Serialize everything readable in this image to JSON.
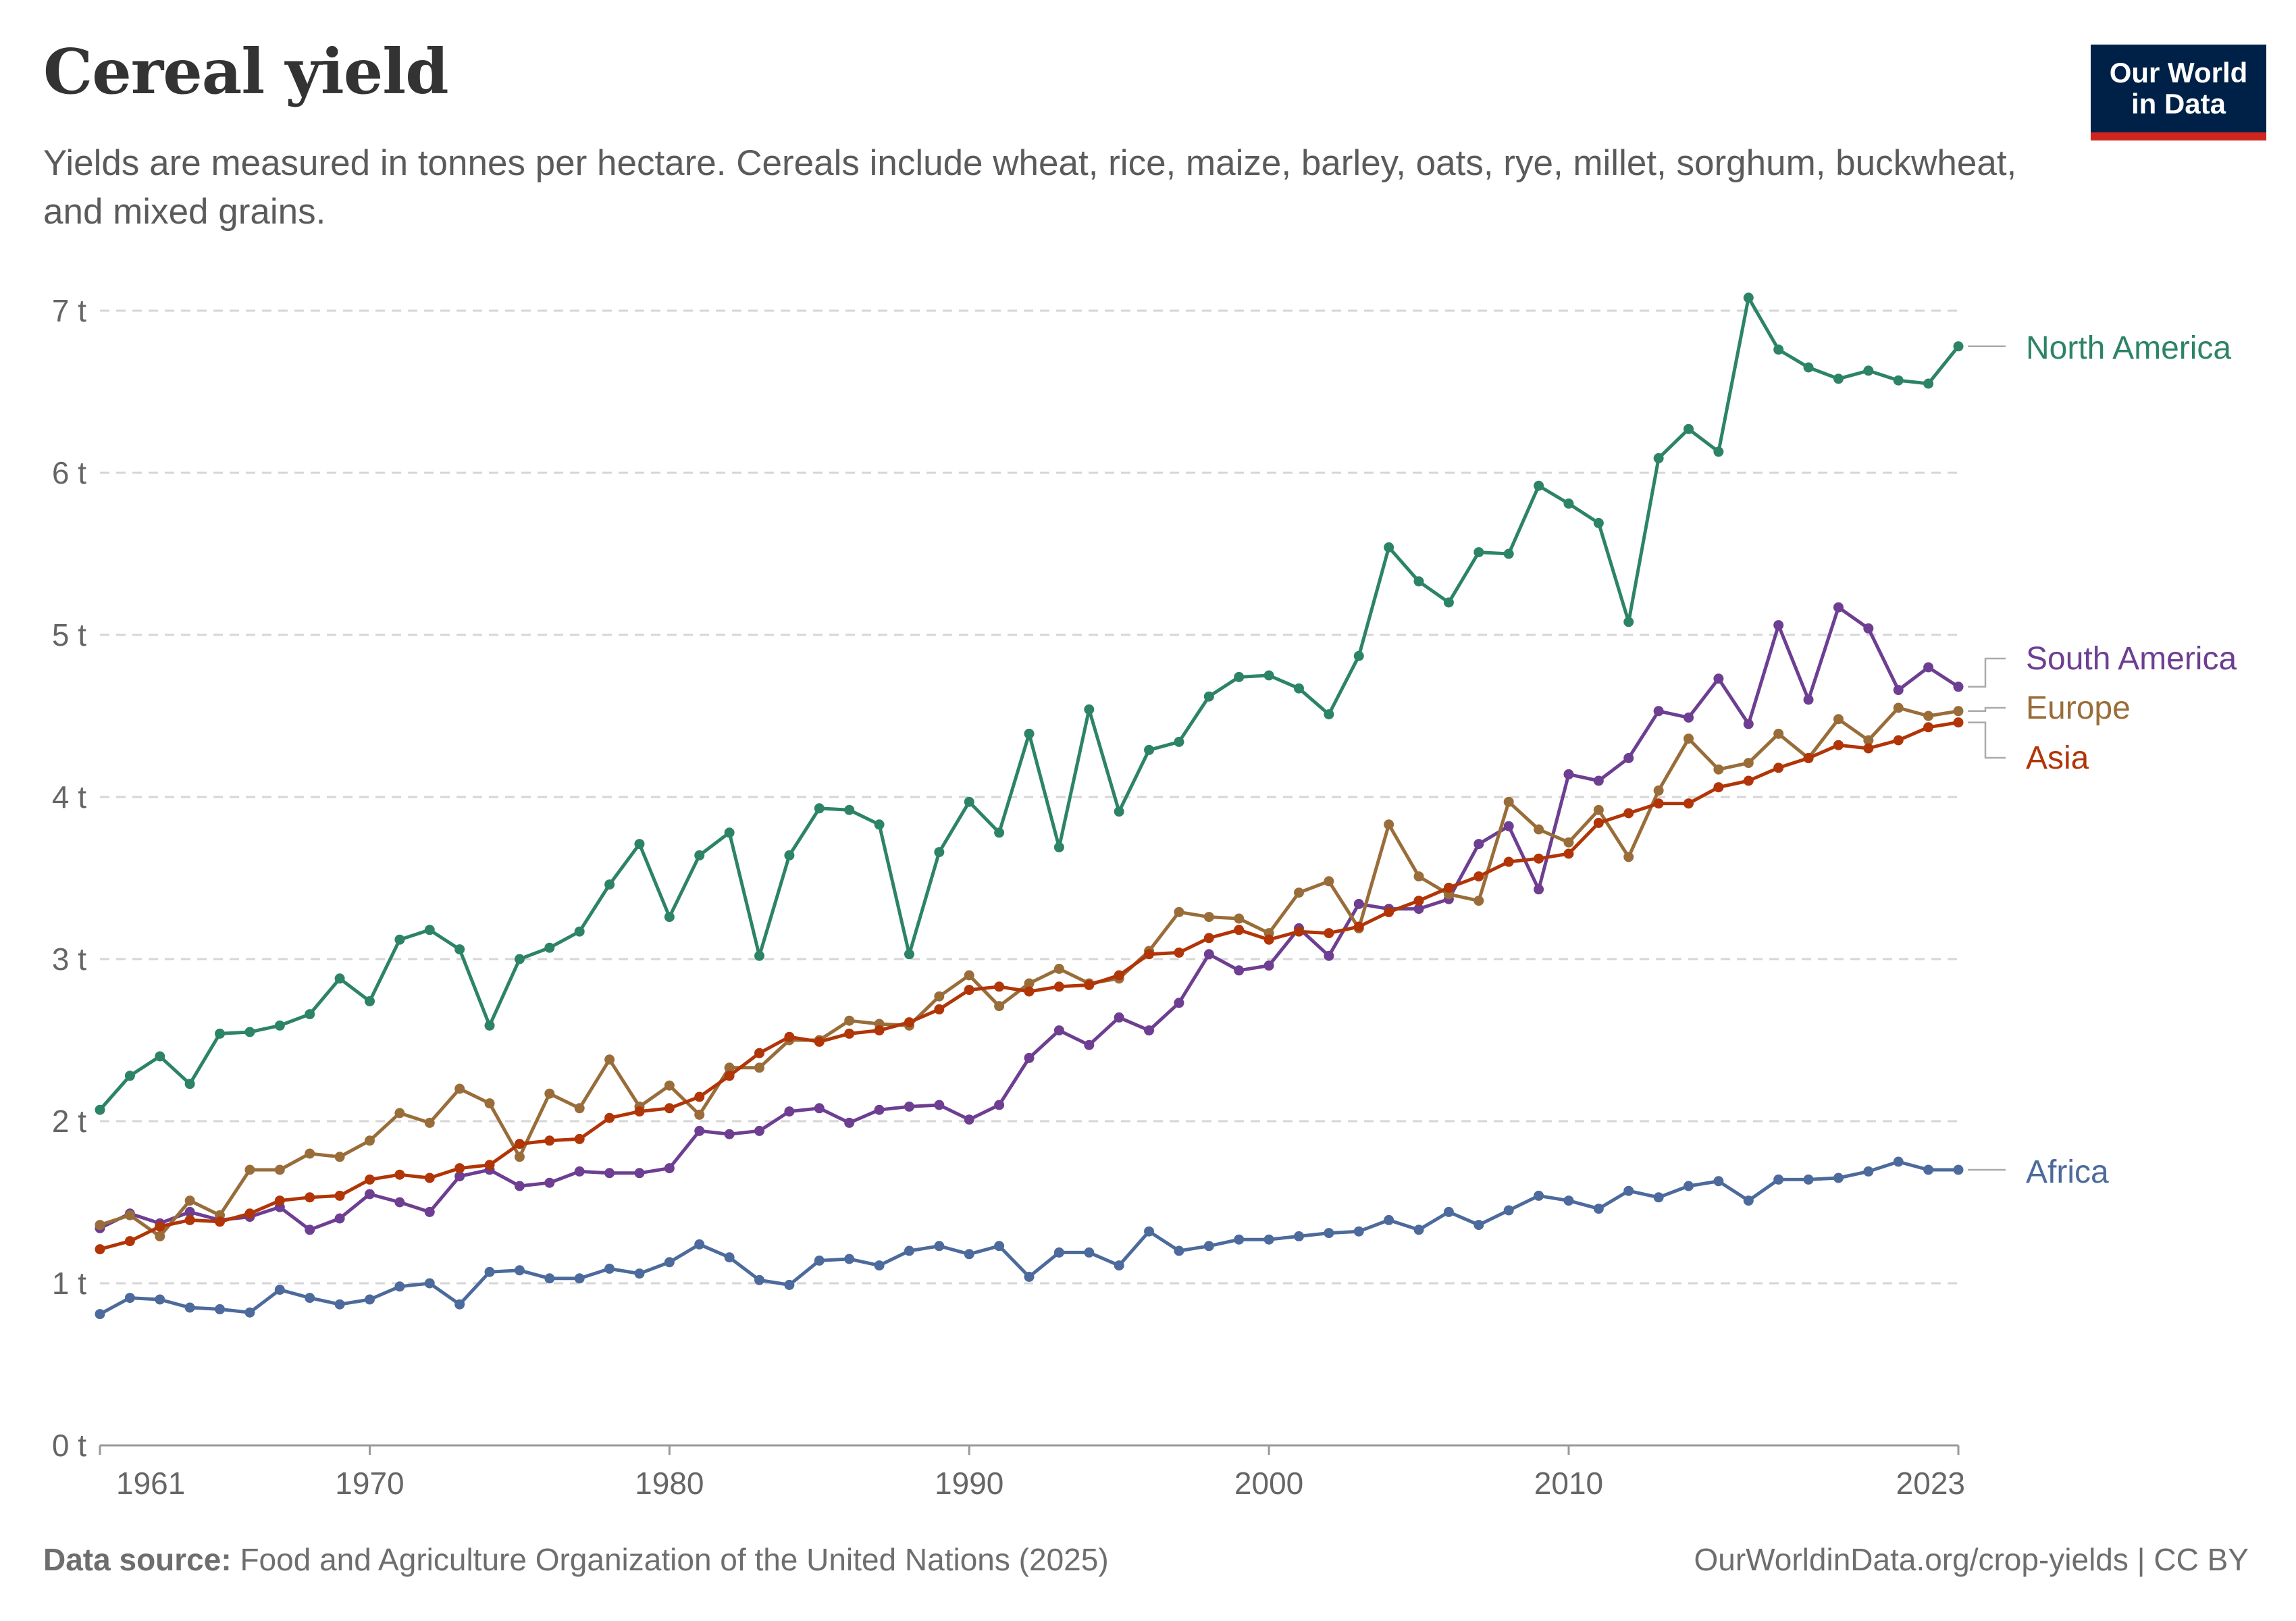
{
  "header": {
    "title": "Cereal yield",
    "subtitle": "Yields are measured in tonnes per hectare. Cereals include wheat, rice, maize, barley, oats, rye, millet, sorghum, buckwheat, and mixed grains.",
    "logo_line1": "Our World",
    "logo_line2": "in Data"
  },
  "footer": {
    "source_label": "Data source:",
    "source_text": "Food and Agriculture Organization of the United Nations (2025)",
    "url_text": "OurWorldinData.org/crop-yields | CC BY"
  },
  "colors": {
    "north_america": "#2c8465",
    "south_america": "#6d3e91",
    "europe": "#996d39",
    "asia": "#b13507",
    "africa": "#4c6a9c"
  },
  "chart_data": {
    "type": "line",
    "title": "Cereal yield",
    "unit": "t",
    "ylim": [
      0,
      7
    ],
    "yticks": [
      0,
      1,
      2,
      3,
      4,
      5,
      6,
      7
    ],
    "ytick_labels": [
      "0 t",
      "1 t",
      "2 t",
      "3 t",
      "4 t",
      "5 t",
      "6 t",
      "7 t"
    ],
    "xlim": [
      1961,
      2023
    ],
    "xticks": [
      1961,
      1970,
      1980,
      1990,
      2000,
      2010,
      2023
    ],
    "xtick_labels": [
      "1961",
      "1970",
      "1980",
      "1990",
      "2000",
      "2010",
      "2023"
    ],
    "grid": "horizontal dashed",
    "legend": "line-end labels at right",
    "x_start": 1961,
    "series": [
      {
        "name": "North America",
        "color": "#2c8465",
        "values": [
          2.07,
          2.28,
          2.4,
          2.23,
          2.54,
          2.55,
          2.59,
          2.66,
          2.88,
          2.74,
          3.12,
          3.18,
          3.06,
          2.59,
          3.0,
          3.07,
          3.17,
          3.46,
          3.71,
          3.26,
          3.64,
          3.78,
          3.02,
          3.64,
          3.93,
          3.92,
          3.83,
          3.03,
          3.66,
          3.97,
          3.78,
          4.39,
          3.69,
          4.54,
          3.91,
          4.29,
          4.34,
          4.62,
          4.74,
          4.75,
          4.67,
          4.51,
          4.87,
          5.54,
          5.33,
          5.2,
          5.51,
          5.5,
          5.92,
          5.81,
          5.69,
          5.08,
          6.09,
          6.27,
          6.13,
          7.08,
          6.76,
          6.65,
          6.58,
          6.63,
          6.57,
          6.55,
          6.78
        ]
      },
      {
        "name": "South America",
        "color": "#6d3e91",
        "values": [
          1.34,
          1.43,
          1.37,
          1.44,
          1.39,
          1.41,
          1.47,
          1.33,
          1.4,
          1.55,
          1.5,
          1.44,
          1.66,
          1.7,
          1.6,
          1.62,
          1.69,
          1.68,
          1.68,
          1.71,
          1.94,
          1.92,
          1.94,
          2.06,
          2.08,
          1.99,
          2.07,
          2.09,
          2.1,
          2.01,
          2.1,
          2.39,
          2.56,
          2.47,
          2.64,
          2.56,
          2.73,
          3.03,
          2.93,
          2.96,
          3.19,
          3.02,
          3.34,
          3.31,
          3.31,
          3.37,
          3.71,
          3.82,
          3.43,
          4.14,
          4.1,
          4.24,
          4.53,
          4.49,
          4.73,
          4.45,
          5.06,
          4.6,
          5.17,
          5.04,
          4.66,
          4.8,
          4.68
        ]
      },
      {
        "name": "Europe",
        "color": "#996d39",
        "values": [
          1.36,
          1.42,
          1.29,
          1.51,
          1.42,
          1.7,
          1.7,
          1.8,
          1.78,
          1.88,
          2.05,
          1.99,
          2.2,
          2.11,
          1.78,
          2.17,
          2.08,
          2.38,
          2.09,
          2.22,
          2.04,
          2.33,
          2.33,
          2.5,
          2.5,
          2.62,
          2.6,
          2.59,
          2.77,
          2.9,
          2.71,
          2.85,
          2.94,
          2.85,
          2.88,
          3.05,
          3.29,
          3.26,
          3.25,
          3.16,
          3.41,
          3.48,
          3.19,
          3.83,
          3.51,
          3.4,
          3.36,
          3.97,
          3.8,
          3.72,
          3.92,
          3.63,
          4.04,
          4.36,
          4.17,
          4.21,
          4.39,
          4.24,
          4.48,
          4.35,
          4.55,
          4.5,
          4.53
        ]
      },
      {
        "name": "Asia",
        "color": "#b13507",
        "values": [
          1.21,
          1.26,
          1.35,
          1.39,
          1.38,
          1.43,
          1.51,
          1.53,
          1.54,
          1.64,
          1.67,
          1.65,
          1.71,
          1.73,
          1.86,
          1.88,
          1.89,
          2.02,
          2.06,
          2.08,
          2.15,
          2.28,
          2.42,
          2.52,
          2.49,
          2.54,
          2.56,
          2.61,
          2.69,
          2.81,
          2.83,
          2.8,
          2.83,
          2.84,
          2.9,
          3.03,
          3.04,
          3.13,
          3.18,
          3.12,
          3.17,
          3.16,
          3.2,
          3.29,
          3.36,
          3.44,
          3.51,
          3.6,
          3.62,
          3.65,
          3.84,
          3.9,
          3.96,
          3.96,
          4.06,
          4.1,
          4.18,
          4.24,
          4.32,
          4.3,
          4.35,
          4.43,
          4.46
        ]
      },
      {
        "name": "Africa",
        "color": "#4c6a9c",
        "values": [
          0.81,
          0.91,
          0.9,
          0.85,
          0.84,
          0.82,
          0.96,
          0.91,
          0.87,
          0.9,
          0.98,
          1.0,
          0.87,
          1.07,
          1.08,
          1.03,
          1.03,
          1.09,
          1.06,
          1.13,
          1.24,
          1.16,
          1.02,
          0.99,
          1.14,
          1.15,
          1.11,
          1.2,
          1.23,
          1.18,
          1.23,
          1.04,
          1.19,
          1.19,
          1.11,
          1.32,
          1.2,
          1.23,
          1.27,
          1.27,
          1.29,
          1.31,
          1.32,
          1.39,
          1.33,
          1.44,
          1.36,
          1.45,
          1.54,
          1.51,
          1.46,
          1.57,
          1.53,
          1.6,
          1.63,
          1.51,
          1.64,
          1.64,
          1.65,
          1.69,
          1.75,
          1.7,
          1.7
        ]
      }
    ]
  }
}
